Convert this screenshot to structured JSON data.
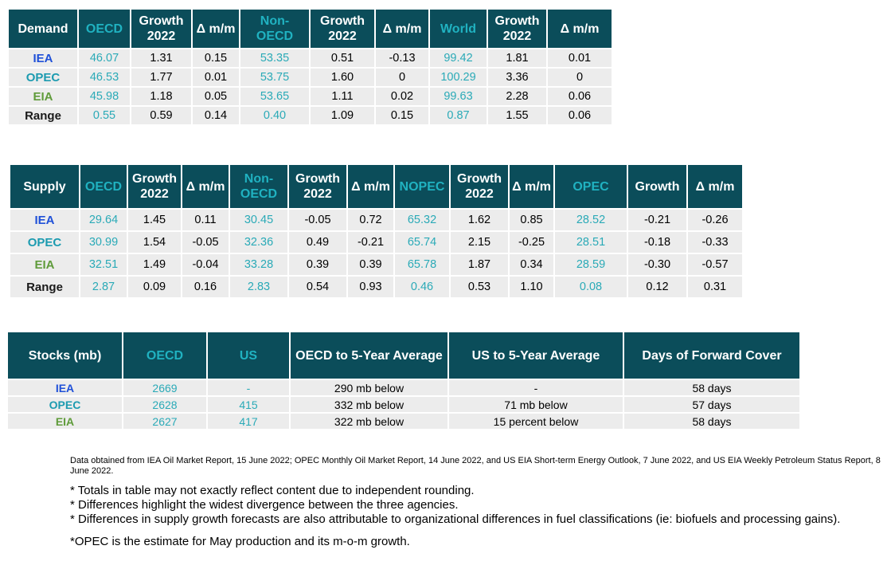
{
  "demand": {
    "headers": [
      "Demand",
      "OECD",
      "Growth 2022",
      "Δ m/m",
      "Non-OECD",
      "Growth 2022",
      "Δ m/m",
      "World",
      "Growth 2022",
      "Δ m/m"
    ],
    "rows": [
      {
        "label": "IEA",
        "cells": [
          "46.07",
          "1.31",
          "0.15",
          "53.35",
          "0.51",
          "-0.13",
          "99.42",
          "1.81",
          "0.01"
        ]
      },
      {
        "label": "OPEC",
        "cells": [
          "46.53",
          "1.77",
          "0.01",
          "53.75",
          "1.60",
          "0",
          "100.29",
          "3.36",
          "0"
        ]
      },
      {
        "label": "EIA",
        "cells": [
          "45.98",
          "1.18",
          "0.05",
          "53.65",
          "1.11",
          "0.02",
          "99.63",
          "2.28",
          "0.06"
        ]
      },
      {
        "label": "Range",
        "cells": [
          "0.55",
          "0.59",
          "0.14",
          "0.40",
          "1.09",
          "0.15",
          "0.87",
          "1.55",
          "0.06"
        ]
      }
    ]
  },
  "supply": {
    "headers": [
      "Supply",
      "OECD",
      "Growth 2022",
      "Δ m/m",
      "Non-OECD",
      "Growth 2022",
      "Δ m/m",
      "NOPEC",
      "Growth 2022",
      "Δ m/m",
      "OPEC",
      "Growth",
      "Δ m/m"
    ],
    "rows": [
      {
        "label": "IEA",
        "cells": [
          "29.64",
          "1.45",
          "0.11",
          "30.45",
          "-0.05",
          "0.72",
          "65.32",
          "1.62",
          "0.85",
          "28.52",
          "-0.21",
          "-0.26"
        ]
      },
      {
        "label": "OPEC",
        "cells": [
          "30.99",
          "1.54",
          "-0.05",
          "32.36",
          "0.49",
          "-0.21",
          "65.74",
          "2.15",
          "-0.25",
          "28.51",
          "-0.18",
          "-0.33"
        ]
      },
      {
        "label": "EIA",
        "cells": [
          "32.51",
          "1.49",
          "-0.04",
          "33.28",
          "0.39",
          "0.39",
          "65.78",
          "1.87",
          "0.34",
          "28.59",
          "-0.30",
          "-0.57"
        ]
      },
      {
        "label": "Range",
        "cells": [
          "2.87",
          "0.09",
          "0.16",
          "2.83",
          "0.54",
          "0.93",
          "0.46",
          "0.53",
          "1.10",
          "0.08",
          "0.12",
          "0.31"
        ]
      }
    ]
  },
  "stocks": {
    "headers": [
      "Stocks (mb)",
      "OECD",
      "US",
      "OECD to 5-Year Average",
      "US to 5-Year Average",
      "Days of Forward Cover"
    ],
    "rows": [
      {
        "label": "IEA",
        "cells": [
          "2669",
          "-",
          "290 mb below",
          "-",
          "58 days"
        ]
      },
      {
        "label": "OPEC",
        "cells": [
          "2628",
          "415",
          "332 mb below",
          "71 mb below",
          "57 days"
        ]
      },
      {
        "label": "EIA",
        "cells": [
          "2627",
          "417",
          "322 mb below",
          "15 percent below",
          "58 days"
        ]
      }
    ]
  },
  "notes": {
    "source": "Data obtained from IEA Oil Market Report, 15 June 2022; OPEC Monthly Oil Market Report, 14 June 2022, and US EIA Short-term Energy Outlook, 7 June 2022, and US EIA Weekly Petroleum Status Report, 8 June 2022.",
    "bullets": [
      "* Totals in table may not exactly reflect content due to independent rounding.",
      "* Differences highlight the widest divergence between the three agencies.",
      "* Differences in supply growth forecasts are also attributable to organizational differences in fuel classifications (ie: biofuels and processing gains)."
    ],
    "opec_note": "*OPEC is the estimate for May production and its m-o-m growth."
  },
  "colors": {
    "header_bg": "#0b4d5a",
    "header_accent": "#20b2c1",
    "cell_bg": "#ececec",
    "iea": "#1f50d8",
    "opec": "#1c9bb0",
    "eia": "#5f9b3a"
  }
}
